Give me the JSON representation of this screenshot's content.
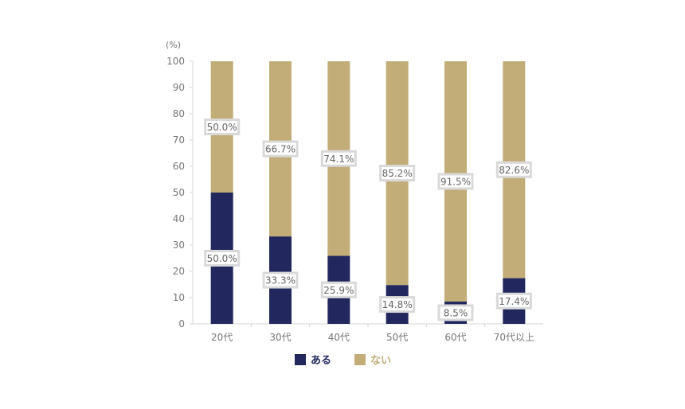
{
  "chart_data": {
    "type": "bar",
    "stacked": true,
    "unit_label": "(%)",
    "categories": [
      "20代",
      "30代",
      "40代",
      "50代",
      "60代",
      "70代以上"
    ],
    "series": [
      {
        "name": "ある",
        "color": "#22275e",
        "values": [
          50.0,
          33.3,
          25.9,
          14.8,
          8.5,
          17.4
        ],
        "labels": [
          "50.0%",
          "33.3%",
          "25.9%",
          "14.8%",
          "8.5%",
          "17.4%"
        ]
      },
      {
        "name": "ない",
        "color": "#c2ad78",
        "values": [
          50.0,
          66.7,
          74.1,
          85.2,
          91.5,
          82.6
        ],
        "labels": [
          "50.0%",
          "66.7%",
          "74.1%",
          "85.2%",
          "91.5%",
          "82.6%"
        ]
      }
    ],
    "ylim": [
      0,
      100
    ],
    "yticks": [
      0,
      10,
      20,
      30,
      40,
      50,
      60,
      70,
      80,
      90,
      100
    ],
    "grid": false,
    "legend_position": "bottom"
  }
}
